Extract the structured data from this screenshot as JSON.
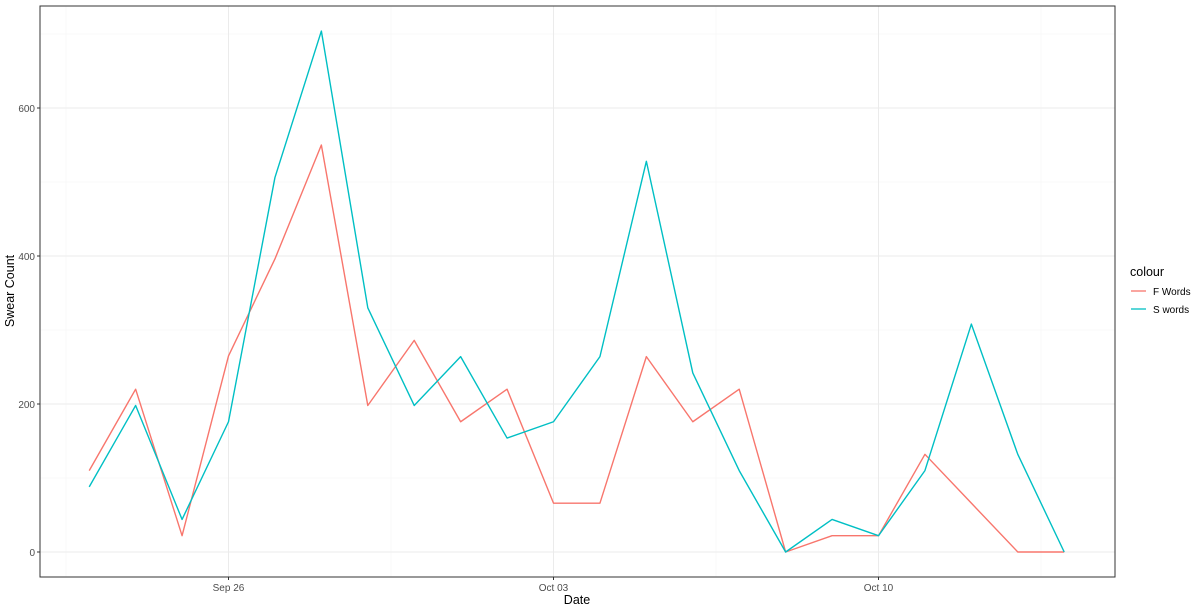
{
  "chart_data": {
    "type": "line",
    "xlabel": "Date",
    "ylabel": "Swear Count",
    "x_ticks": [
      "Sep 26",
      "Oct 03",
      "Oct 10"
    ],
    "y_ticks": [
      "0",
      "200",
      "400",
      "600"
    ],
    "xlim": [
      "2021-09-22",
      "2021-10-14"
    ],
    "ylim": [
      -35,
      740
    ],
    "grid": true,
    "legend": {
      "title": "colour",
      "placement": "right"
    },
    "x": [
      "2021-09-23",
      "2021-09-24",
      "2021-09-25",
      "2021-09-26",
      "2021-09-27",
      "2021-09-28",
      "2021-09-29",
      "2021-09-30",
      "2021-10-01",
      "2021-10-02",
      "2021-10-03",
      "2021-10-04",
      "2021-10-05",
      "2021-10-06",
      "2021-10-07",
      "2021-10-08",
      "2021-10-09",
      "2021-10-10",
      "2021-10-11",
      "2021-10-12",
      "2021-10-13",
      "2021-10-14"
    ],
    "series": [
      {
        "name": "F Words",
        "color": "#F8766D",
        "values": [
          110,
          220,
          22,
          265,
          396,
          550,
          198,
          286,
          176,
          220,
          66,
          66,
          264,
          176,
          220,
          0,
          22,
          22,
          132,
          66,
          0,
          0
        ]
      },
      {
        "name": "S words",
        "color": "#00BFC4",
        "values": [
          88,
          198,
          44,
          176,
          506,
          704,
          330,
          198,
          264,
          154,
          176,
          264,
          528,
          242,
          110,
          0,
          44,
          22,
          110,
          308,
          132,
          0
        ]
      }
    ]
  }
}
